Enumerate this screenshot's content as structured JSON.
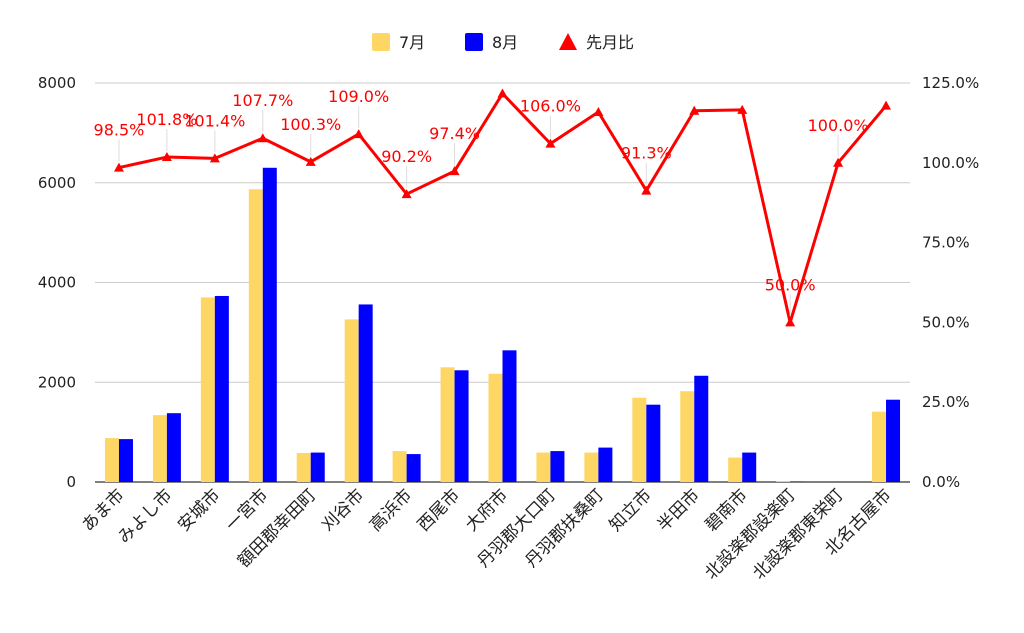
{
  "chart_data": {
    "type": "bar",
    "categories": [
      "あま市",
      "みよし市",
      "安城市",
      "一宮市",
      "額田郡幸田町",
      "刈谷市",
      "高浜市",
      "西尾市",
      "大府市",
      "丹羽郡大口町",
      "丹羽郡扶桑町",
      "知立市",
      "半田市",
      "碧南市",
      "北設楽郡設楽町",
      "北設楽郡東栄町",
      "北名古屋市"
    ],
    "series": [
      {
        "name": "7月",
        "type": "bar",
        "axis": "left",
        "color": "#fdd663",
        "values": [
          880,
          1340,
          3700,
          5870,
          580,
          3260,
          620,
          2300,
          2170,
          590,
          590,
          1690,
          1820,
          490,
          10,
          0,
          1410
        ]
      },
      {
        "name": "8月",
        "type": "bar",
        "axis": "left",
        "color": "#0000ff",
        "values": [
          860,
          1380,
          3730,
          6300,
          590,
          3560,
          560,
          2240,
          2640,
          620,
          690,
          1550,
          2130,
          590,
          10,
          0,
          1650
        ]
      },
      {
        "name": "先月比",
        "type": "line",
        "axis": "right",
        "color": "#ff0000",
        "values": [
          98.5,
          101.8,
          101.4,
          107.7,
          100.3,
          109.0,
          90.2,
          97.4,
          121.7,
          106.0,
          115.9,
          91.3,
          116.3,
          116.6,
          50.0,
          100.0,
          117.9
        ],
        "labels": [
          "98.5%",
          "101.8%",
          "101.4%",
          "107.7%",
          "100.3%",
          "109.0%",
          "90.2%",
          "97.4%",
          "",
          "106.0%",
          "",
          "91.3%",
          "",
          "",
          "50.0%",
          "100.0%",
          ""
        ]
      }
    ],
    "y_left": {
      "ticks": [
        "0",
        "2000",
        "4000",
        "6000",
        "8000"
      ],
      "min": 0,
      "max": 8000
    },
    "y_right": {
      "ticks": [
        "0.0%",
        "25.0%",
        "50.0%",
        "75.0%",
        "100.0%",
        "125.0%"
      ],
      "min": 0,
      "max": 125
    },
    "legend_position": "top",
    "grid": true
  }
}
